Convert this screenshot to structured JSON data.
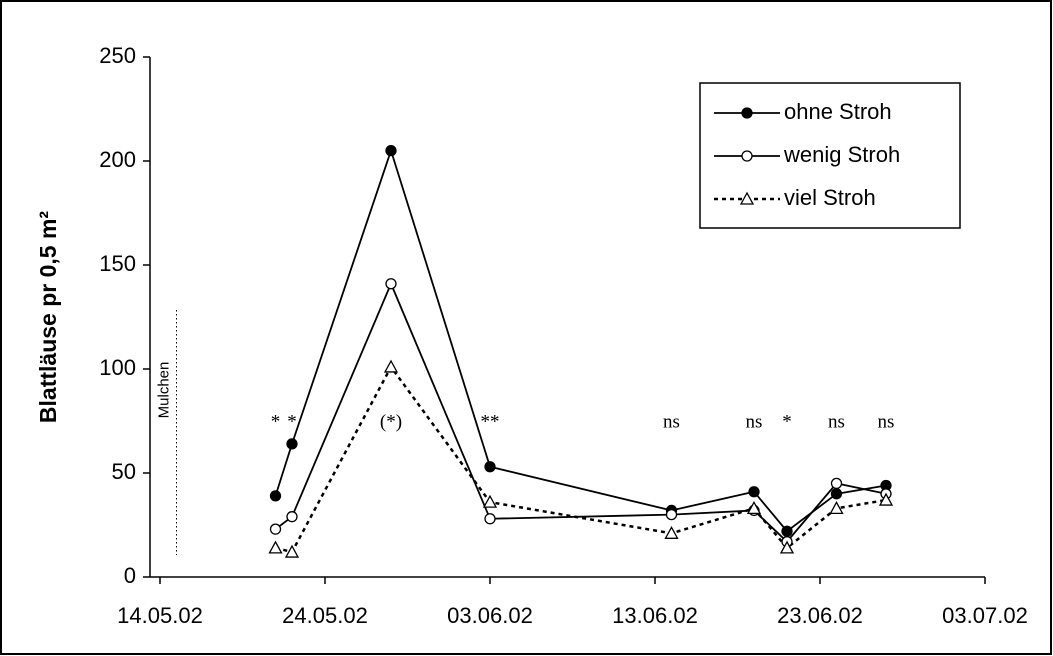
{
  "chart_data": {
    "type": "line",
    "y_label": "Blattläuse pr 0,5 m²",
    "xlim": [
      "14.05.02",
      "03.07.02"
    ],
    "xticks": [
      "14.05.02",
      "24.05.02",
      "03.06.02",
      "13.06.02",
      "23.06.02",
      "03.07.02"
    ],
    "ylim": [
      0,
      250
    ],
    "yticks": [
      0,
      50,
      100,
      150,
      200,
      250
    ],
    "x": [
      "21.05.02",
      "22.05.02",
      "28.05.02",
      "03.06.02",
      "14.06.02",
      "19.06.02",
      "21.06.02",
      "24.06.02",
      "27.06.02"
    ],
    "series": [
      {
        "name": "ohne Stroh",
        "color": "#000000",
        "marker": "filled-circle",
        "dashed": false,
        "values": [
          39,
          64,
          205,
          53,
          32,
          41,
          22,
          40,
          44
        ]
      },
      {
        "name": "wenig Stroh",
        "color": "#000000",
        "marker": "open-circle",
        "dashed": false,
        "values": [
          23,
          29,
          141,
          28,
          30,
          32,
          17,
          45,
          40
        ]
      },
      {
        "name": "viel Stroh",
        "color": "#000000",
        "marker": "open-triangle",
        "dashed": true,
        "values": [
          14,
          12,
          101,
          36,
          21,
          33,
          14,
          33,
          37
        ]
      }
    ],
    "annotations": [
      {
        "x": "21.05.02",
        "text": "*"
      },
      {
        "x": "22.05.02",
        "text": "*"
      },
      {
        "x": "28.05.02",
        "text": "(*)"
      },
      {
        "x": "03.06.02",
        "text": "**"
      },
      {
        "x": "14.06.02",
        "text": "ns"
      },
      {
        "x": "19.06.02",
        "text": "ns"
      },
      {
        "x": "21.06.02",
        "text": "*"
      },
      {
        "x": "24.06.02",
        "text": "ns"
      },
      {
        "x": "27.06.02",
        "text": "ns"
      }
    ],
    "mulch_marker": {
      "x": "15.05.02",
      "label": "Mulchen"
    },
    "legend": "top-right"
  }
}
